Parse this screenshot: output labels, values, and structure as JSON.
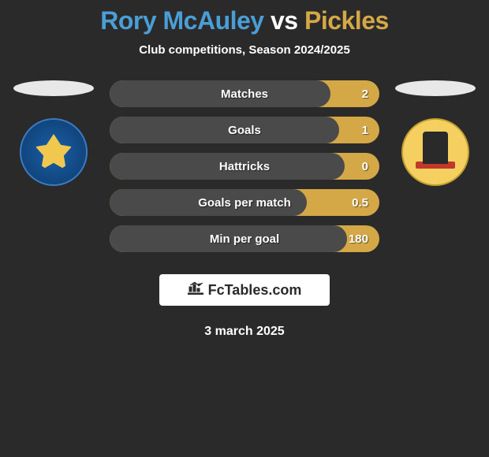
{
  "title": {
    "player1": "Rory McAuley",
    "vs": "vs",
    "player2": "Pickles"
  },
  "subtitle": "Club competitions, Season 2024/2025",
  "colors": {
    "player1": "#4a9ed6",
    "player2": "#d4a847",
    "background": "#2a2a2a",
    "bar_bg": "#4a4a4a"
  },
  "stats": [
    {
      "label": "Matches",
      "value": "2",
      "fill_pct": 82
    },
    {
      "label": "Goals",
      "value": "1",
      "fill_pct": 85
    },
    {
      "label": "Hattricks",
      "value": "0",
      "fill_pct": 87
    },
    {
      "label": "Goals per match",
      "value": "0.5",
      "fill_pct": 73
    },
    {
      "label": "Min per goal",
      "value": "180",
      "fill_pct": 88
    }
  ],
  "logo_text": "FcTables.com",
  "date": "3 march 2025"
}
